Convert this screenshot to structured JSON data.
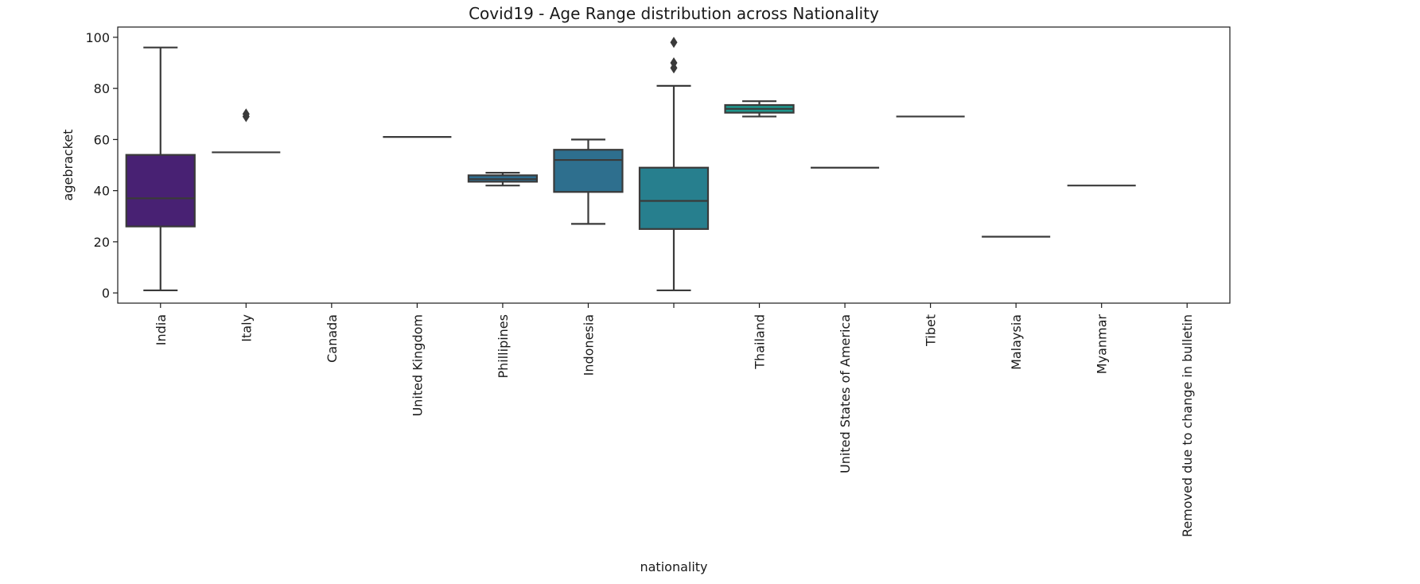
{
  "chart_data": {
    "type": "box",
    "title": "Covid19 - Age Range distribution across Nationality",
    "xlabel": "nationality",
    "ylabel": "agebracket",
    "ylim": [
      -4,
      104
    ],
    "yticks": [
      0,
      20,
      40,
      60,
      80,
      100
    ],
    "grid": false,
    "legend": "none",
    "categories": [
      "India",
      "Italy",
      "Canada",
      "United Kingdom",
      "Phillipines",
      "Indonesia",
      "",
      "Thailand",
      "United States of America",
      "Tibet",
      "Malaysia",
      "Myanmar",
      "Removed due to change in bulletin"
    ],
    "boxes": [
      {
        "category": "India",
        "min": 1,
        "q1": 26,
        "median": 37,
        "q3": 54,
        "max": 96,
        "outliers": [],
        "color": "#482173"
      },
      {
        "category": "Italy",
        "min": 55,
        "q1": 55,
        "median": 55,
        "q3": 55,
        "max": 55,
        "outliers": [
          69,
          70
        ],
        "color": "#433e85"
      },
      {
        "category": "Canada",
        "min": null,
        "q1": null,
        "median": null,
        "q3": null,
        "max": null,
        "outliers": [],
        "color": "#38588c"
      },
      {
        "category": "United Kingdom",
        "min": 61,
        "q1": 61,
        "median": 61,
        "q3": 61,
        "max": 61,
        "outliers": [],
        "color": "#31688e"
      },
      {
        "category": "Phillipines",
        "min": 42,
        "q1": 43.5,
        "median": 44.5,
        "q3": 46,
        "max": 47,
        "outliers": [],
        "color": "#2f6c8e"
      },
      {
        "category": "Indonesia",
        "min": 27,
        "q1": 39.5,
        "median": 52,
        "q3": 56,
        "max": 60,
        "outliers": [],
        "color": "#2e6f8e"
      },
      {
        "category": "",
        "min": 1,
        "q1": 25,
        "median": 36,
        "q3": 49,
        "max": 81,
        "outliers": [
          88,
          90,
          98
        ],
        "color": "#277f8e"
      },
      {
        "category": "Thailand",
        "min": 69,
        "q1": 70.5,
        "median": 72,
        "q3": 73.5,
        "max": 75,
        "outliers": [],
        "color": "#1f958b"
      },
      {
        "category": "United States of America",
        "min": 49,
        "q1": 49,
        "median": 49,
        "q3": 49,
        "max": 49,
        "outliers": [],
        "color": "#35b779"
      },
      {
        "category": "Tibet",
        "min": 69,
        "q1": 69,
        "median": 69,
        "q3": 69,
        "max": 69,
        "outliers": [],
        "color": "#5ec962"
      },
      {
        "category": "Malaysia",
        "min": 22,
        "q1": 22,
        "median": 22,
        "q3": 22,
        "max": 22,
        "outliers": [],
        "color": "#90d743"
      },
      {
        "category": "Myanmar",
        "min": 42,
        "q1": 42,
        "median": 42,
        "q3": 42,
        "max": 42,
        "outliers": [],
        "color": "#c8e020"
      },
      {
        "category": "Removed due to change in bulletin",
        "min": null,
        "q1": null,
        "median": null,
        "q3": null,
        "max": null,
        "outliers": [],
        "color": "#fde725"
      }
    ],
    "colors": {
      "line": "#3a3a3a"
    }
  }
}
